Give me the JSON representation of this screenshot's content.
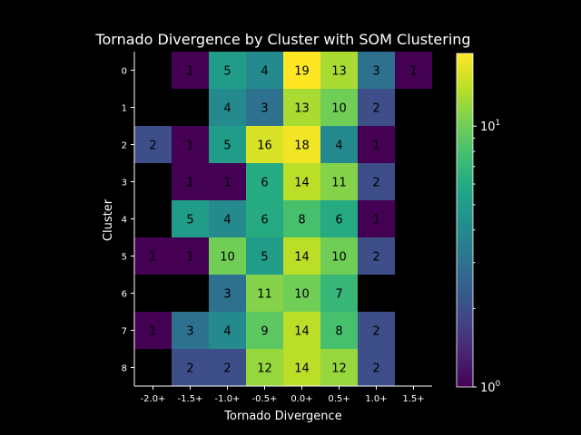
{
  "chart_data": {
    "type": "heatmap",
    "title": "Tornado Divergence by Cluster with SOM Clustering",
    "xlabel": "Tornado Divergence",
    "ylabel": "Cluster",
    "x_categories": [
      "-2.0+",
      "-1.5+",
      "-1.0+",
      "-0.5+",
      "0.0+",
      "0.5+",
      "1.0+",
      "1.5+"
    ],
    "y_categories": [
      "0",
      "1",
      "2",
      "3",
      "4",
      "5",
      "6",
      "7",
      "8"
    ],
    "values": [
      [
        null,
        1,
        5,
        4,
        19,
        13,
        3,
        1
      ],
      [
        null,
        null,
        4,
        3,
        13,
        10,
        2,
        null
      ],
      [
        2,
        1,
        5,
        16,
        18,
        4,
        1,
        null
      ],
      [
        null,
        1,
        1,
        6,
        14,
        11,
        2,
        null
      ],
      [
        null,
        5,
        4,
        6,
        8,
        6,
        1,
        null
      ],
      [
        1,
        1,
        10,
        5,
        14,
        10,
        2,
        null
      ],
      [
        null,
        null,
        3,
        11,
        10,
        7,
        null,
        null
      ],
      [
        1,
        3,
        4,
        9,
        14,
        8,
        2,
        null
      ],
      [
        null,
        2,
        2,
        12,
        14,
        12,
        2,
        null
      ]
    ],
    "colormap": "viridis",
    "color_scale": "log",
    "color_range": [
      1,
      19
    ],
    "colorbar_ticks": [
      {
        "base": "10",
        "exp": "0"
      },
      {
        "base": "10",
        "exp": "1"
      }
    ]
  }
}
